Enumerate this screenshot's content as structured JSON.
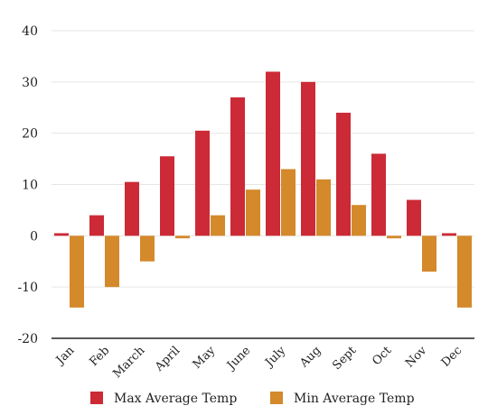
{
  "chart_data": {
    "type": "bar",
    "categories": [
      "Jan",
      "Feb",
      "March",
      "April",
      "May",
      "June",
      "July",
      "Aug",
      "Sept",
      "Oct",
      "Nov",
      "Dec"
    ],
    "series": [
      {
        "name": "Max Average Temp",
        "color": "#cc2a36",
        "values": [
          0.5,
          4,
          10.5,
          15.5,
          20.5,
          27,
          32,
          30,
          24,
          16,
          7,
          0.5
        ]
      },
      {
        "name": "Min Average Temp",
        "color": "#d4892b",
        "values": [
          -14,
          -10,
          -5,
          -0.5,
          4,
          9,
          13,
          11,
          6,
          -0.5,
          -7,
          -14
        ]
      }
    ],
    "ylim": [
      -20,
      40
    ],
    "yticks": [
      40,
      30,
      20,
      10,
      0,
      -10,
      -20
    ],
    "grid": true,
    "legend_position": "bottom"
  }
}
